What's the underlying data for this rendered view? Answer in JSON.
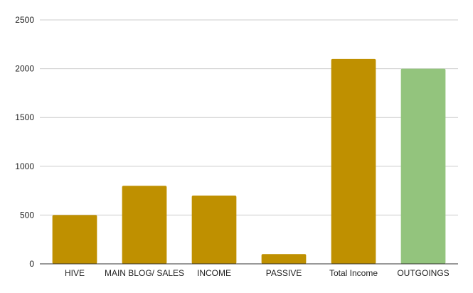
{
  "chart_data": {
    "type": "bar",
    "title": "",
    "xlabel": "",
    "ylabel": "",
    "categories": [
      "HIVE",
      "MAIN BLOG/ SALES",
      "INCOME",
      "PASSIVE",
      "Total Income",
      "OUTGOINGS"
    ],
    "values": [
      500,
      800,
      700,
      100,
      2100,
      2000
    ],
    "bar_colors": [
      "#bf9000",
      "#bf9000",
      "#bf9000",
      "#bf9000",
      "#bf9000",
      "#93c47d"
    ],
    "ylim": [
      0,
      2500
    ],
    "yticks": [
      0,
      500,
      1000,
      1500,
      2000,
      2500
    ],
    "grid": true,
    "legend": "none",
    "gridline_color": "#cccccc",
    "axis_color": "#333333",
    "text_color": "#222222"
  }
}
